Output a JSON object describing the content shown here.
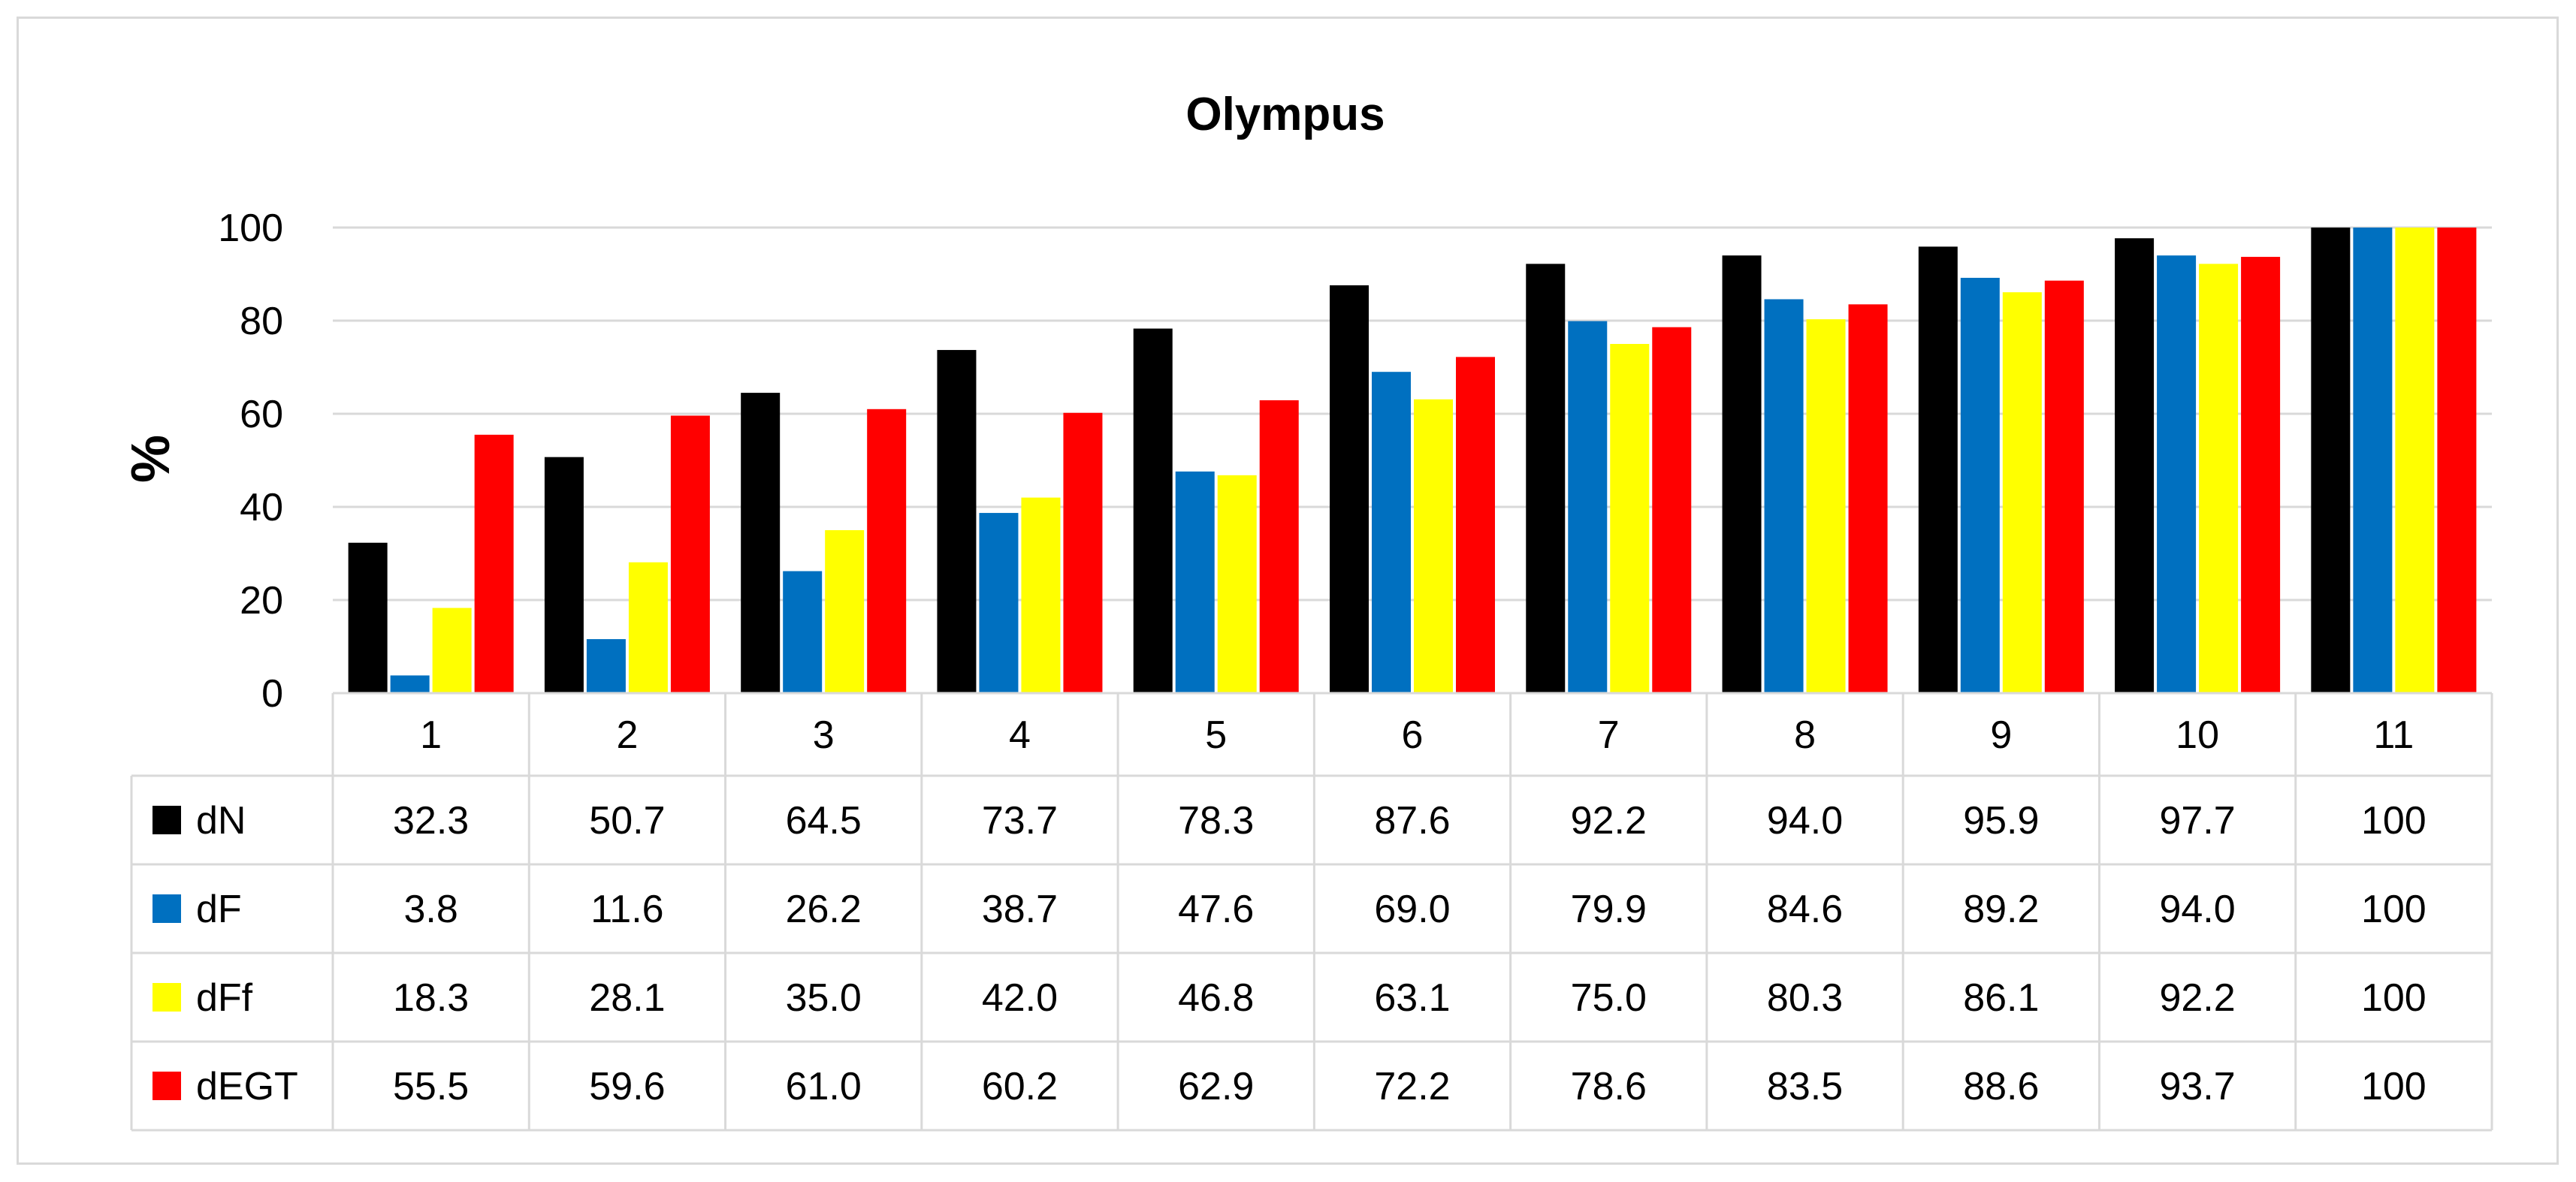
{
  "chart_data": {
    "type": "bar",
    "title": "Olympus",
    "xlabel": "",
    "ylabel": "%",
    "ylim": [
      0,
      100
    ],
    "yticks": [
      0,
      20,
      40,
      60,
      80,
      100
    ],
    "grid": true,
    "legend": "data table below chart",
    "categories": [
      "1",
      "2",
      "3",
      "4",
      "5",
      "6",
      "7",
      "8",
      "9",
      "10",
      "11"
    ],
    "series": [
      {
        "name": "dN",
        "color": "#000000",
        "values": [
          32.3,
          50.7,
          64.5,
          73.7,
          78.3,
          87.6,
          92.2,
          94.0,
          95.9,
          97.7,
          100
        ],
        "labels": [
          "32.3",
          "50.7",
          "64.5",
          "73.7",
          "78.3",
          "87.6",
          "92.2",
          "94.0",
          "95.9",
          "97.7",
          "100"
        ]
      },
      {
        "name": "dF",
        "color": "#0070c0",
        "values": [
          3.8,
          11.6,
          26.2,
          38.7,
          47.6,
          69.0,
          79.9,
          84.6,
          89.2,
          94.0,
          100
        ],
        "labels": [
          "3.8",
          "11.6",
          "26.2",
          "38.7",
          "47.6",
          "69.0",
          "79.9",
          "84.6",
          "89.2",
          "94.0",
          "100"
        ]
      },
      {
        "name": "dFf",
        "color": "#ffff00",
        "values": [
          18.3,
          28.1,
          35.0,
          42.0,
          46.8,
          63.1,
          75.0,
          80.3,
          86.1,
          92.2,
          100
        ],
        "labels": [
          "18.3",
          "28.1",
          "35.0",
          "42.0",
          "46.8",
          "63.1",
          "75.0",
          "80.3",
          "86.1",
          "92.2",
          "100"
        ]
      },
      {
        "name": "dEGT",
        "color": "#ff0000",
        "values": [
          55.5,
          59.6,
          61.0,
          60.2,
          62.9,
          72.2,
          78.6,
          83.5,
          88.6,
          93.7,
          100
        ],
        "labels": [
          "55.5",
          "59.6",
          "61.0",
          "60.2",
          "62.9",
          "72.2",
          "78.6",
          "83.5",
          "88.6",
          "93.7",
          "100"
        ]
      }
    ]
  }
}
